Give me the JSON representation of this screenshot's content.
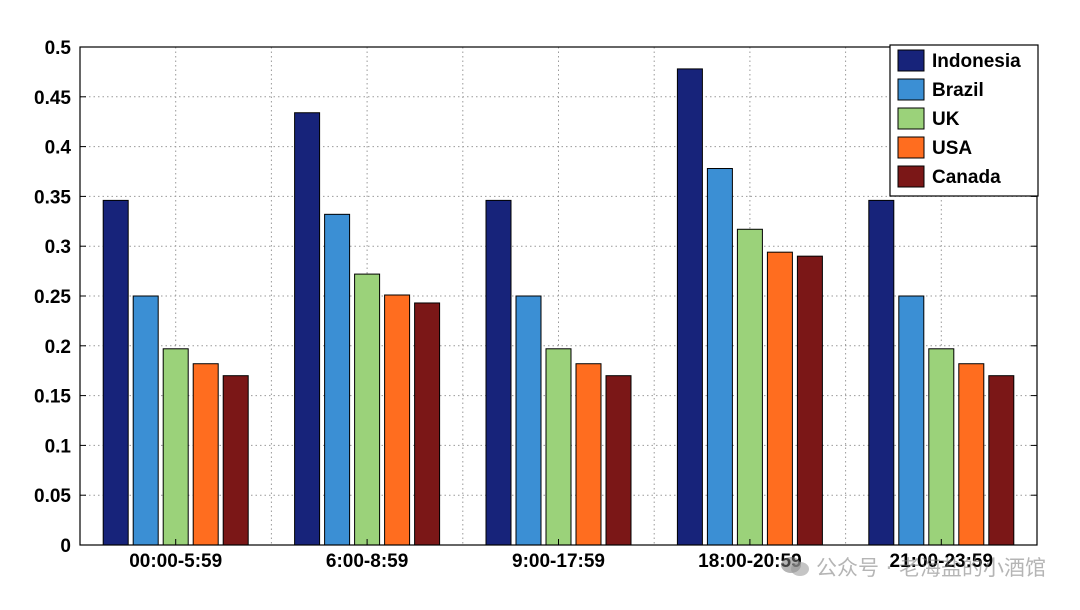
{
  "chart_data": {
    "type": "bar",
    "categories": [
      "00:00-5:59",
      "6:00-8:59",
      "9:00-17:59",
      "18:00-20:59",
      "21:00-23:59"
    ],
    "series": [
      {
        "name": "Indonesia",
        "color": "#17237a",
        "values": [
          0.346,
          0.434,
          0.346,
          0.478,
          0.346
        ]
      },
      {
        "name": "Brazil",
        "color": "#3b8fd4",
        "values": [
          0.25,
          0.332,
          0.25,
          0.378,
          0.25
        ]
      },
      {
        "name": "UK",
        "color": "#9bd27a",
        "values": [
          0.197,
          0.272,
          0.197,
          0.317,
          0.197
        ]
      },
      {
        "name": "USA",
        "color": "#ff6d1f",
        "values": [
          0.182,
          0.251,
          0.182,
          0.294,
          0.182
        ]
      },
      {
        "name": "Canada",
        "color": "#7b1717",
        "values": [
          0.17,
          0.243,
          0.17,
          0.29,
          0.17
        ]
      }
    ],
    "ylim": [
      0,
      0.5
    ],
    "yticks": [
      "0",
      "0.05",
      "0.1",
      "0.15",
      "0.2",
      "0.25",
      "0.3",
      "0.35",
      "0.4",
      "0.45",
      "0.5"
    ],
    "xlabel": "",
    "ylabel": "",
    "title": "",
    "grid": true,
    "legend_position": "top-right"
  },
  "watermark": {
    "text": "公众号 · 老海盐的小酒馆",
    "icon": "wechat-icon"
  }
}
